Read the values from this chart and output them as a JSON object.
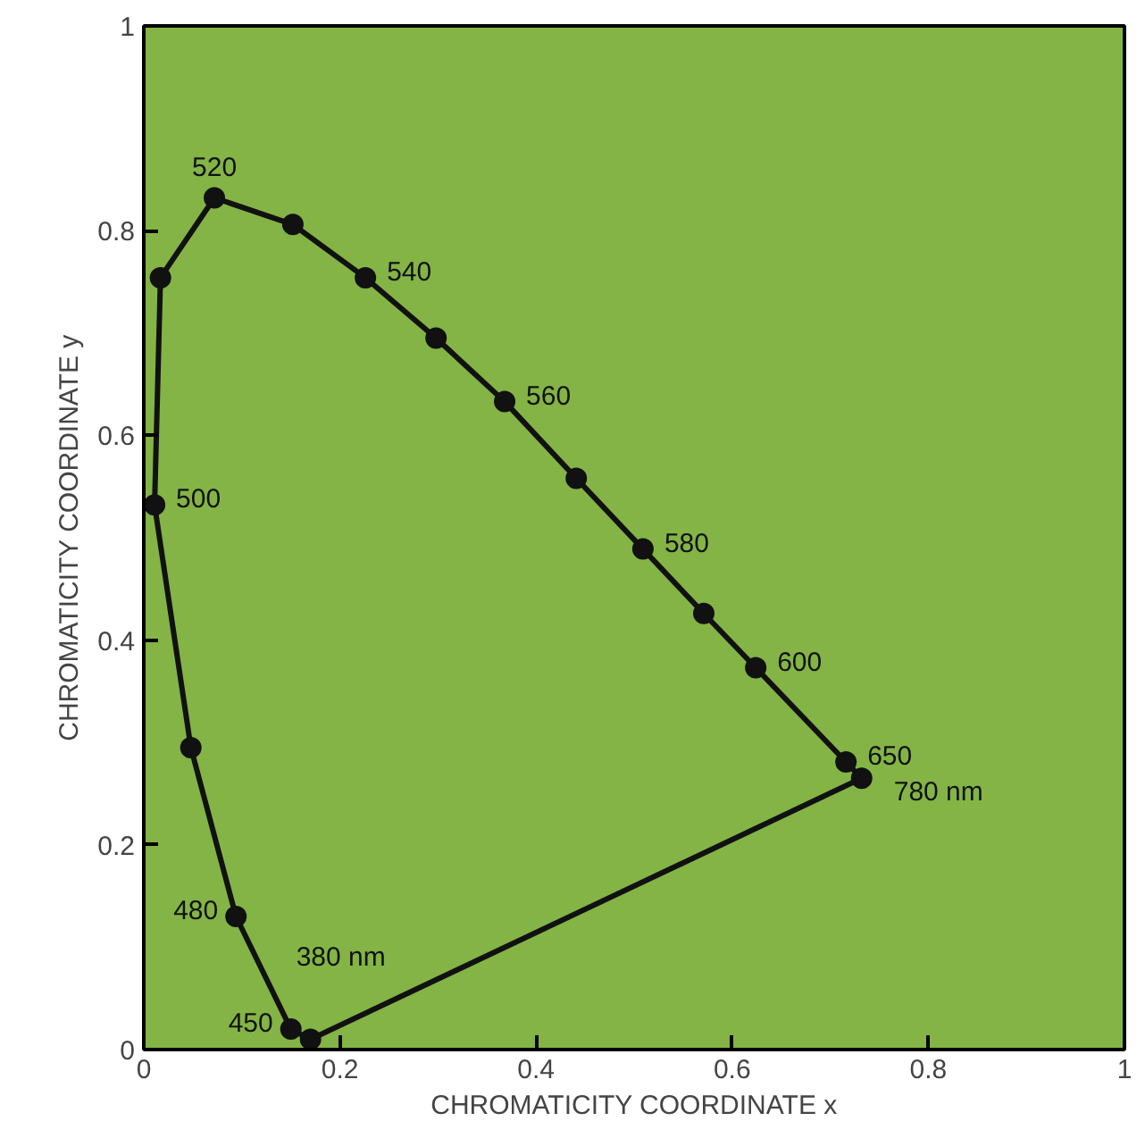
{
  "chart_data": {
    "type": "line",
    "xlabel": "CHROMATICITY COORDINATE x",
    "ylabel": "CHROMATICITY COORDINATE y",
    "xlim": [
      0,
      1
    ],
    "ylim": [
      0,
      1
    ],
    "xticks": [
      0,
      0.2,
      0.4,
      0.6,
      0.8,
      1
    ],
    "yticks": [
      0,
      0.2,
      0.4,
      0.6,
      0.8,
      1
    ],
    "grid": false,
    "series": [
      {
        "type": "line",
        "marker": "circle",
        "color": "#111111",
        "x": [
          0.17,
          0.15,
          0.094,
          0.048,
          0.011,
          0.017,
          0.072,
          0.152,
          0.226,
          0.298,
          0.368,
          0.441,
          0.509,
          0.571,
          0.624,
          0.716,
          0.732
        ],
        "values": [
          0.01,
          0.02,
          0.13,
          0.295,
          0.532,
          0.754,
          0.832,
          0.806,
          0.754,
          0.695,
          0.633,
          0.558,
          0.489,
          0.426,
          0.373,
          0.281,
          0.265
        ]
      },
      {
        "type": "line",
        "marker": "none",
        "color": "#111111",
        "x": [
          0.732,
          0.17
        ],
        "values": [
          0.265,
          0.01
        ]
      }
    ],
    "annotations": [
      {
        "text": "380 nm",
        "x": 0.17,
        "y": 0.01
      },
      {
        "text": "450",
        "x": 0.15,
        "y": 0.02
      },
      {
        "text": "480",
        "x": 0.094,
        "y": 0.13
      },
      {
        "text": "500",
        "x": 0.011,
        "y": 0.532
      },
      {
        "text": "520",
        "x": 0.072,
        "y": 0.832
      },
      {
        "text": "540",
        "x": 0.226,
        "y": 0.754
      },
      {
        "text": "560",
        "x": 0.368,
        "y": 0.633
      },
      {
        "text": "580",
        "x": 0.509,
        "y": 0.489
      },
      {
        "text": "600",
        "x": 0.624,
        "y": 0.373
      },
      {
        "text": "650",
        "x": 0.716,
        "y": 0.281
      },
      {
        "text": "780 nm",
        "x": 0.732,
        "y": 0.265
      }
    ]
  }
}
